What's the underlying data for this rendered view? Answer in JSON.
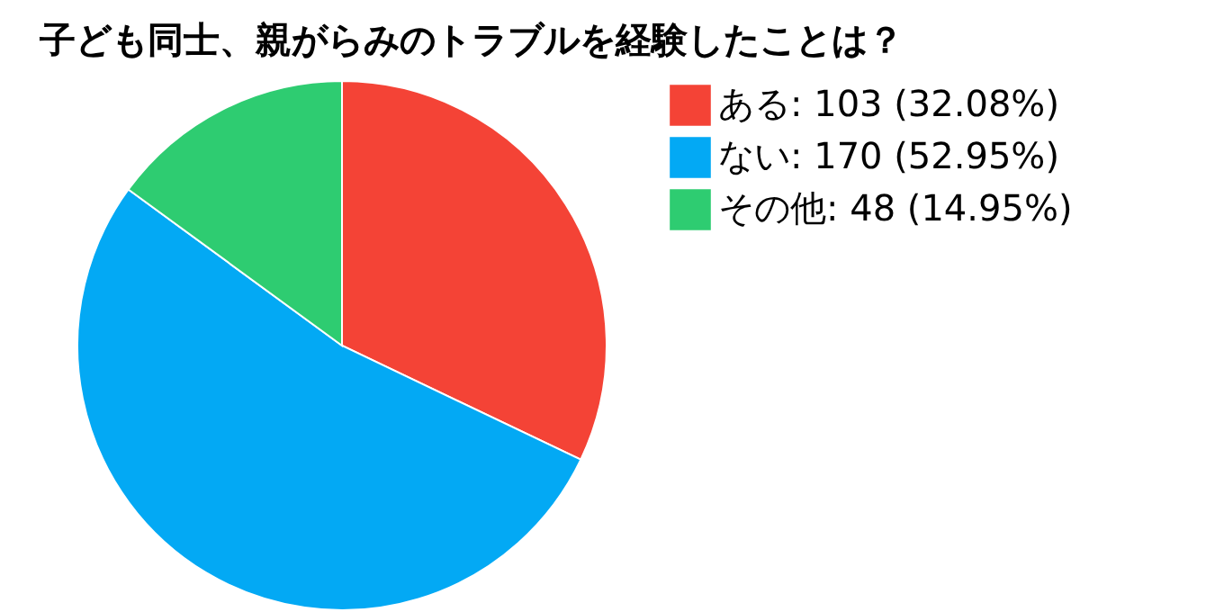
{
  "chart_data": {
    "type": "pie",
    "title": "子ども同士、親がらみのトラブルを経験したことは？",
    "categories": [
      "ある",
      "ない",
      "その他"
    ],
    "values": [
      103,
      170,
      48
    ],
    "value_labels": [
      "103 (32.08%)",
      "170 (52.95%)",
      "48 (14.95%)"
    ],
    "colors": [
      "#f44336",
      "#03a9f4",
      "#2ecc71"
    ],
    "legend": "top right"
  }
}
